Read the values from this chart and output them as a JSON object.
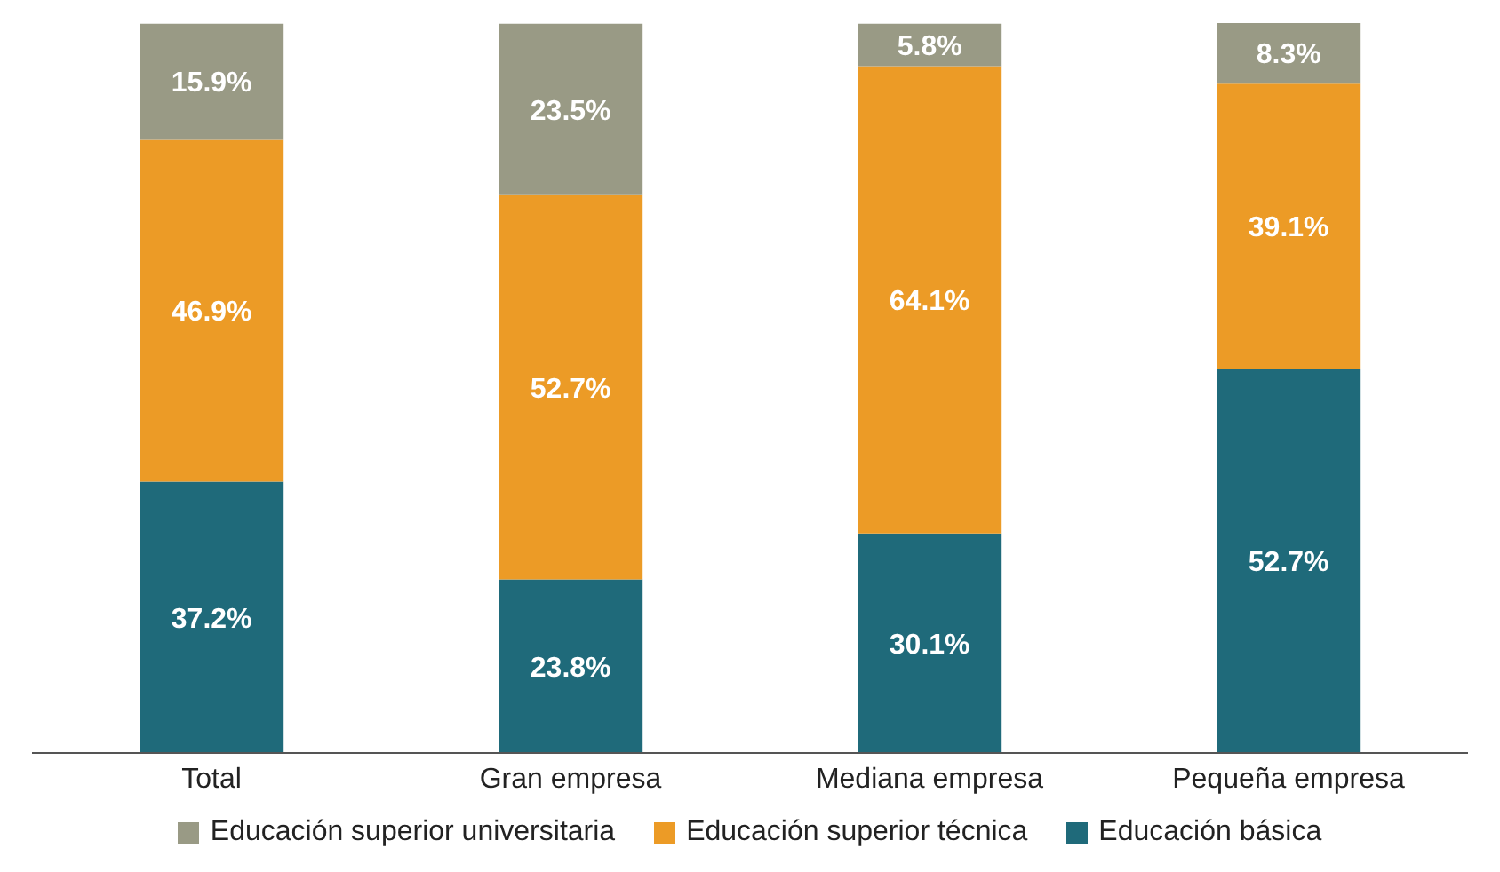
{
  "chart_data": {
    "type": "bar",
    "stacked": true,
    "categories": [
      "Total",
      "Gran empresa",
      "Mediana empresa",
      "Pequeña empresa"
    ],
    "series": [
      {
        "name": "Educación básica",
        "color": "#1f6a7a",
        "values": [
          37.2,
          23.8,
          30.1,
          52.7
        ],
        "value_labels": [
          "37.2%",
          "23.8%",
          "30.1%",
          "52.7%"
        ]
      },
      {
        "name": "Educación superior técnica",
        "color": "#ec9b26",
        "values": [
          46.9,
          52.7,
          64.1,
          39.1
        ],
        "value_labels": [
          "46.9%",
          "52.7%",
          "64.1%",
          "39.1%"
        ]
      },
      {
        "name": "Educación superior universitaria",
        "color": "#999a85",
        "values": [
          15.9,
          23.5,
          5.8,
          8.3
        ],
        "value_labels": [
          "15.9%",
          "23.5%",
          "5.8%",
          "8.3%"
        ]
      }
    ],
    "legend": "bottom"
  }
}
